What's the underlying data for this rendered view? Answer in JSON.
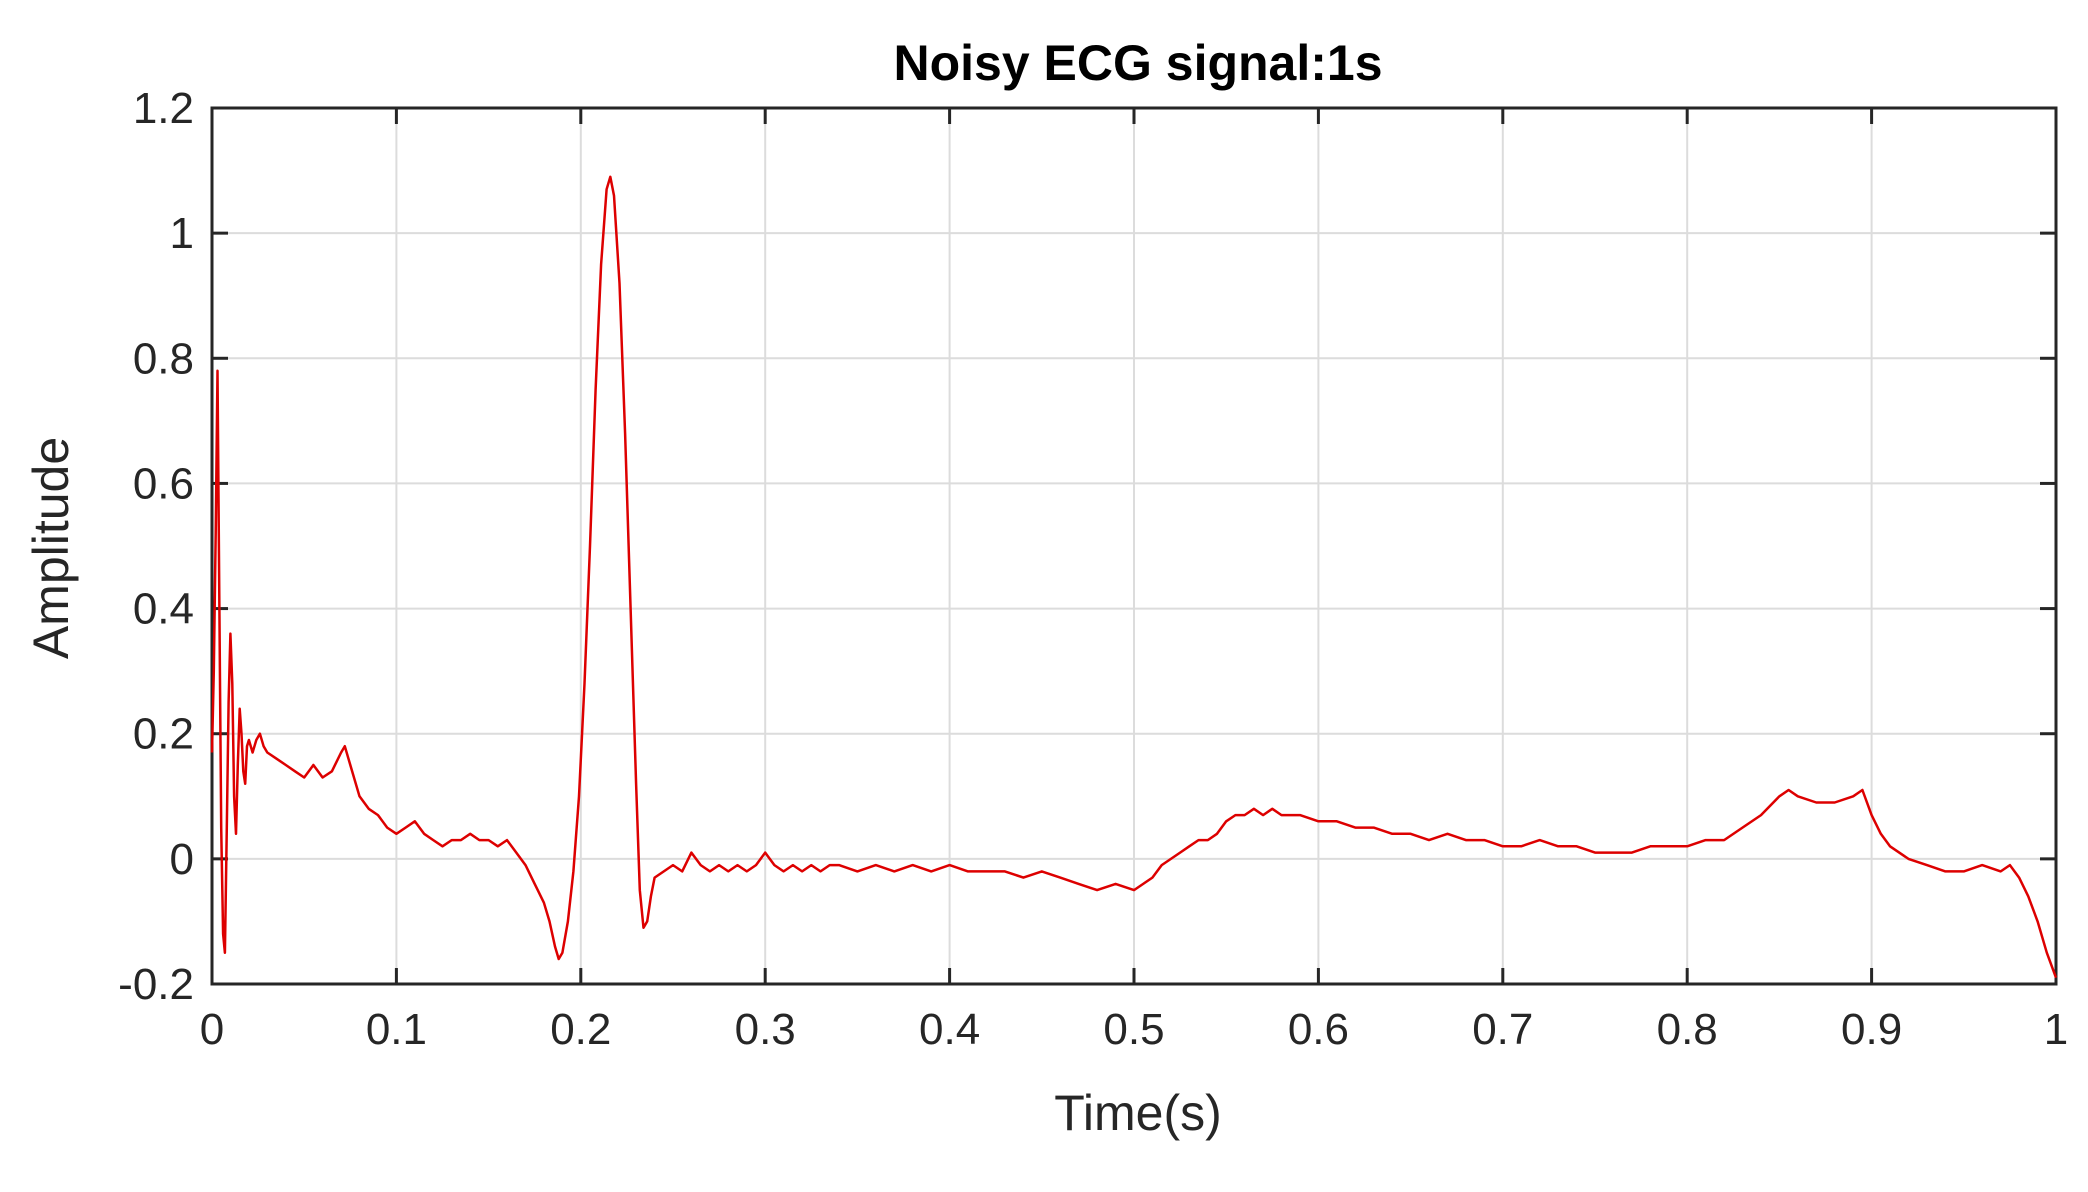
{
  "chart_data": {
    "type": "line",
    "title": "Noisy ECG signal:1s",
    "xlabel": "Time(s)",
    "ylabel": "Amplitude",
    "xlim": [
      0,
      1
    ],
    "ylim": [
      -0.2,
      1.2
    ],
    "xticks": [
      0,
      0.1,
      0.2,
      0.3,
      0.4,
      0.5,
      0.6,
      0.7,
      0.8,
      0.9,
      1
    ],
    "xtick_labels": [
      "0",
      "0.1",
      "0.2",
      "0.3",
      "0.4",
      "0.5",
      "0.6",
      "0.7",
      "0.8",
      "0.9",
      "1"
    ],
    "yticks": [
      -0.2,
      0,
      0.2,
      0.4,
      0.6,
      0.8,
      1,
      1.2
    ],
    "ytick_labels": [
      "-0.2",
      "0",
      "0.2",
      "0.4",
      "0.6",
      "0.8",
      "1",
      "1.2"
    ],
    "grid": true,
    "legend": false,
    "line_color": "#dd0000",
    "series": [
      {
        "points": [
          [
            0,
            0.17
          ],
          [
            0.001,
            0.3
          ],
          [
            0.002,
            0.52
          ],
          [
            0.003,
            0.78
          ],
          [
            0.004,
            0.4
          ],
          [
            0.005,
            0.05
          ],
          [
            0.006,
            -0.12
          ],
          [
            0.007,
            -0.15
          ],
          [
            0.008,
            0.05
          ],
          [
            0.009,
            0.25
          ],
          [
            0.01,
            0.36
          ],
          [
            0.011,
            0.28
          ],
          [
            0.012,
            0.1
          ],
          [
            0.013,
            0.04
          ],
          [
            0.014,
            0.15
          ],
          [
            0.015,
            0.24
          ],
          [
            0.016,
            0.2
          ],
          [
            0.017,
            0.14
          ],
          [
            0.018,
            0.12
          ],
          [
            0.019,
            0.18
          ],
          [
            0.02,
            0.19
          ],
          [
            0.022,
            0.17
          ],
          [
            0.024,
            0.19
          ],
          [
            0.026,
            0.2
          ],
          [
            0.028,
            0.18
          ],
          [
            0.03,
            0.17
          ],
          [
            0.035,
            0.16
          ],
          [
            0.04,
            0.15
          ],
          [
            0.045,
            0.14
          ],
          [
            0.05,
            0.13
          ],
          [
            0.055,
            0.15
          ],
          [
            0.06,
            0.13
          ],
          [
            0.065,
            0.14
          ],
          [
            0.07,
            0.17
          ],
          [
            0.072,
            0.18
          ],
          [
            0.075,
            0.15
          ],
          [
            0.08,
            0.1
          ],
          [
            0.085,
            0.08
          ],
          [
            0.09,
            0.07
          ],
          [
            0.095,
            0.05
          ],
          [
            0.1,
            0.04
          ],
          [
            0.105,
            0.05
          ],
          [
            0.11,
            0.06
          ],
          [
            0.115,
            0.04
          ],
          [
            0.12,
            0.03
          ],
          [
            0.125,
            0.02
          ],
          [
            0.13,
            0.03
          ],
          [
            0.135,
            0.03
          ],
          [
            0.14,
            0.04
          ],
          [
            0.145,
            0.03
          ],
          [
            0.15,
            0.03
          ],
          [
            0.155,
            0.02
          ],
          [
            0.16,
            0.03
          ],
          [
            0.165,
            0.01
          ],
          [
            0.17,
            -0.01
          ],
          [
            0.175,
            -0.04
          ],
          [
            0.18,
            -0.07
          ],
          [
            0.183,
            -0.1
          ],
          [
            0.186,
            -0.14
          ],
          [
            0.188,
            -0.16
          ],
          [
            0.19,
            -0.15
          ],
          [
            0.193,
            -0.1
          ],
          [
            0.196,
            -0.02
          ],
          [
            0.199,
            0.1
          ],
          [
            0.202,
            0.28
          ],
          [
            0.205,
            0.5
          ],
          [
            0.208,
            0.75
          ],
          [
            0.211,
            0.95
          ],
          [
            0.214,
            1.07
          ],
          [
            0.216,
            1.09
          ],
          [
            0.218,
            1.06
          ],
          [
            0.221,
            0.92
          ],
          [
            0.224,
            0.68
          ],
          [
            0.227,
            0.4
          ],
          [
            0.23,
            0.12
          ],
          [
            0.232,
            -0.05
          ],
          [
            0.234,
            -0.11
          ],
          [
            0.236,
            -0.1
          ],
          [
            0.238,
            -0.06
          ],
          [
            0.24,
            -0.03
          ],
          [
            0.245,
            -0.02
          ],
          [
            0.25,
            -0.01
          ],
          [
            0.255,
            -0.02
          ],
          [
            0.26,
            0.01
          ],
          [
            0.265,
            -0.01
          ],
          [
            0.27,
            -0.02
          ],
          [
            0.275,
            -0.01
          ],
          [
            0.28,
            -0.02
          ],
          [
            0.285,
            -0.01
          ],
          [
            0.29,
            -0.02
          ],
          [
            0.295,
            -0.01
          ],
          [
            0.3,
            0.01
          ],
          [
            0.305,
            -0.01
          ],
          [
            0.31,
            -0.02
          ],
          [
            0.315,
            -0.01
          ],
          [
            0.32,
            -0.02
          ],
          [
            0.325,
            -0.01
          ],
          [
            0.33,
            -0.02
          ],
          [
            0.335,
            -0.01
          ],
          [
            0.34,
            -0.01
          ],
          [
            0.35,
            -0.02
          ],
          [
            0.36,
            -0.01
          ],
          [
            0.37,
            -0.02
          ],
          [
            0.38,
            -0.01
          ],
          [
            0.39,
            -0.02
          ],
          [
            0.4,
            -0.01
          ],
          [
            0.41,
            -0.02
          ],
          [
            0.42,
            -0.02
          ],
          [
            0.43,
            -0.02
          ],
          [
            0.44,
            -0.03
          ],
          [
            0.45,
            -0.02
          ],
          [
            0.46,
            -0.03
          ],
          [
            0.47,
            -0.04
          ],
          [
            0.48,
            -0.05
          ],
          [
            0.49,
            -0.04
          ],
          [
            0.5,
            -0.05
          ],
          [
            0.505,
            -0.04
          ],
          [
            0.51,
            -0.03
          ],
          [
            0.515,
            -0.01
          ],
          [
            0.52,
            0.0
          ],
          [
            0.525,
            0.01
          ],
          [
            0.53,
            0.02
          ],
          [
            0.535,
            0.03
          ],
          [
            0.54,
            0.03
          ],
          [
            0.545,
            0.04
          ],
          [
            0.55,
            0.06
          ],
          [
            0.555,
            0.07
          ],
          [
            0.56,
            0.07
          ],
          [
            0.565,
            0.08
          ],
          [
            0.57,
            0.07
          ],
          [
            0.575,
            0.08
          ],
          [
            0.58,
            0.07
          ],
          [
            0.59,
            0.07
          ],
          [
            0.6,
            0.06
          ],
          [
            0.61,
            0.06
          ],
          [
            0.62,
            0.05
          ],
          [
            0.63,
            0.05
          ],
          [
            0.64,
            0.04
          ],
          [
            0.65,
            0.04
          ],
          [
            0.66,
            0.03
          ],
          [
            0.67,
            0.04
          ],
          [
            0.68,
            0.03
          ],
          [
            0.69,
            0.03
          ],
          [
            0.7,
            0.02
          ],
          [
            0.71,
            0.02
          ],
          [
            0.72,
            0.03
          ],
          [
            0.73,
            0.02
          ],
          [
            0.74,
            0.02
          ],
          [
            0.75,
            0.01
          ],
          [
            0.76,
            0.01
          ],
          [
            0.77,
            0.01
          ],
          [
            0.78,
            0.02
          ],
          [
            0.79,
            0.02
          ],
          [
            0.8,
            0.02
          ],
          [
            0.81,
            0.03
          ],
          [
            0.82,
            0.03
          ],
          [
            0.83,
            0.05
          ],
          [
            0.84,
            0.07
          ],
          [
            0.85,
            0.1
          ],
          [
            0.855,
            0.11
          ],
          [
            0.86,
            0.1
          ],
          [
            0.87,
            0.09
          ],
          [
            0.88,
            0.09
          ],
          [
            0.89,
            0.1
          ],
          [
            0.895,
            0.11
          ],
          [
            0.9,
            0.07
          ],
          [
            0.905,
            0.04
          ],
          [
            0.91,
            0.02
          ],
          [
            0.92,
            0.0
          ],
          [
            0.93,
            -0.01
          ],
          [
            0.94,
            -0.02
          ],
          [
            0.95,
            -0.02
          ],
          [
            0.96,
            -0.01
          ],
          [
            0.97,
            -0.02
          ],
          [
            0.975,
            -0.01
          ],
          [
            0.98,
            -0.03
          ],
          [
            0.985,
            -0.06
          ],
          [
            0.99,
            -0.1
          ],
          [
            0.995,
            -0.15
          ],
          [
            1.0,
            -0.19
          ]
        ]
      }
    ]
  }
}
